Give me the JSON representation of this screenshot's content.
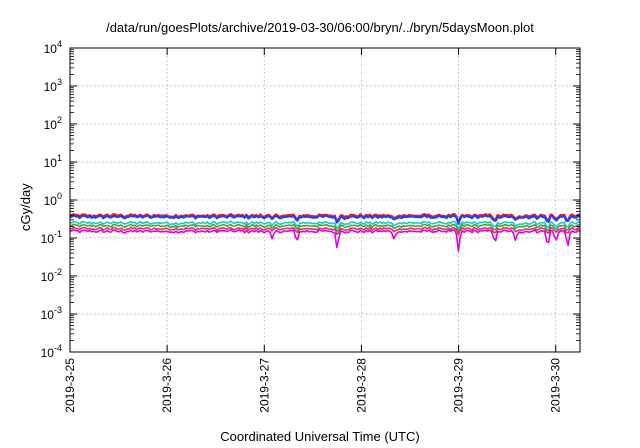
{
  "chart_data": {
    "type": "line",
    "title": "/data/run/goesPlots/archive/2019-03-30/06:00/bryn/../bryn/5daysMoon.plot",
    "xlabel": "Coordinated Universal Time (UTC)",
    "ylabel": "cGy/day",
    "yscale": "log",
    "ylim": [
      0.0001,
      10000
    ],
    "ytick_exponents": [
      -4,
      -3,
      -2,
      -1,
      0,
      1,
      2,
      3,
      4
    ],
    "ytick_base": "10",
    "xlim": [
      "2019-03-25 00:00",
      "2019-03-30 06:00"
    ],
    "xtick_labels": [
      "2019-3-25",
      "2019-3-26",
      "2019-3-27",
      "2019-3-28",
      "2019-3-29",
      "2019-3-30"
    ],
    "grid": true,
    "legend": "none",
    "series": [
      {
        "color": "#e8202a",
        "level": 0.39
      },
      {
        "color": "#2a3cf0",
        "level": 0.36
      },
      {
        "color": "#20c8c0",
        "level": 0.25
      },
      {
        "color": "#3aa83a",
        "level": 0.21
      },
      {
        "color": "#e03070",
        "level": 0.175
      },
      {
        "color": "#e000e0",
        "level": 0.15
      }
    ],
    "dips": [
      {
        "date": "2019-03-27 02:00",
        "depth": 0.45
      },
      {
        "date": "2019-03-27 08:00",
        "depth": 0.5
      },
      {
        "date": "2019-03-27 18:00",
        "depth": 0.7
      },
      {
        "date": "2019-03-28 08:00",
        "depth": 0.4
      },
      {
        "date": "2019-03-29 00:00",
        "depth": 0.75
      },
      {
        "date": "2019-03-29 09:00",
        "depth": 0.55
      },
      {
        "date": "2019-03-29 14:00",
        "depth": 0.45
      },
      {
        "date": "2019-03-29 22:00",
        "depth": 0.7
      },
      {
        "date": "2019-03-30 00:00",
        "depth": 0.5
      },
      {
        "date": "2019-03-30 03:00",
        "depth": 0.7
      }
    ]
  }
}
